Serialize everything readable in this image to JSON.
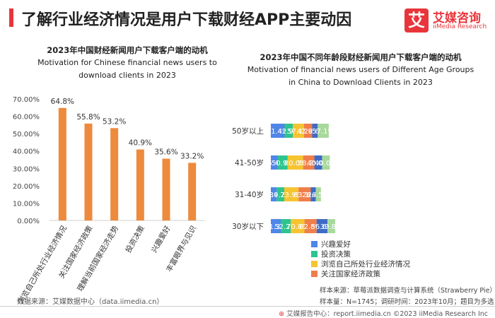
{
  "header": {
    "title": "了解行业经济情况是用户下载财经APP主要动因",
    "logo_mark": "艾",
    "logo_cn": "艾媒咨询",
    "logo_en": "iiMedia Research"
  },
  "colors": {
    "accent": "#e8353b",
    "bar_orange": "#ee8a3c",
    "series": [
      "#4f86e8",
      "#2ec48f",
      "#f5c431",
      "#f07e4a",
      "#3e6bc6",
      "#a8d99c"
    ]
  },
  "chart_data": [
    {
      "type": "bar",
      "title": "2023年中国财经新闻用户下载客户端的动机",
      "subtitle_line1": "Motivation for Chinese financial news users to",
      "subtitle_line2": "download clients in 2023",
      "categories": [
        "浏览自己所处行业经济情况",
        "关注国家经济政策",
        "理解当前国家经济走势",
        "投资决策",
        "兴趣爱好",
        "丰富眼界与见识"
      ],
      "values": [
        64.8,
        55.8,
        53.2,
        40.9,
        35.6,
        33.2
      ],
      "value_labels": [
        "64.8%",
        "55.8%",
        "53.2%",
        "40.9%",
        "35.6%",
        "33.2%"
      ],
      "yticks": [
        "0.00%",
        "10.00%",
        "20.00%",
        "30.00%",
        "40.00%",
        "50.00%",
        "60.00%",
        "70.00%"
      ],
      "ylim": [
        0,
        70
      ],
      "xlabel": "",
      "ylabel": ""
    },
    {
      "type": "bar",
      "orientation": "horizontal-stacked",
      "title": "2023年中国不同年龄段财经新闻用户下载客户端的动机",
      "subtitle_line1": "Motivation of financial news users of Different Age Groups",
      "subtitle_line2": "in China to Download Clients in 2023",
      "categories": [
        "50岁以上",
        "41-50岁",
        "31-40岁",
        "30岁以下"
      ],
      "series": [
        {
          "name": "兴趣爱好",
          "values": [
            71.4,
            36.4,
            30.4,
            51.3
          ],
          "labels": [
            "71.4%",
            "36.4%",
            "30.4%",
            "51.3%"
          ]
        },
        {
          "name": "投资决策",
          "values": [
            42.9,
            50.9,
            39.2,
            52.2
          ],
          "labels": [
            "42.9%",
            "50.9%",
            "39.2%",
            "52.2%"
          ]
        },
        {
          "name": "浏览自己所处行业经济情况",
          "values": [
            57.1,
            80.0,
            73.9,
            70.8
          ],
          "labels": [
            "57.1%",
            "80.0%",
            "73.9%",
            "70.8%"
          ]
        },
        {
          "name": "关注国家经济政策",
          "values": [
            42.9,
            58.2,
            63.1,
            62.8
          ],
          "labels": [
            "42.9%",
            "58.2%",
            "63.1%",
            "62.8%"
          ]
        },
        {
          "name": "",
          "values": [
            28.6,
            40.0,
            26.4,
            56.6
          ],
          "labels": [
            "28.6%",
            "40.0%",
            "26.4%",
            "56.6%"
          ]
        },
        {
          "name": "",
          "values": [
            57.1,
            40.0,
            26.5,
            39.8
          ],
          "labels": [
            "57.1%",
            "40.0%",
            "26.5%",
            "39.8%"
          ]
        }
      ],
      "legend_position": "bottom-left"
    }
  ],
  "notes": {
    "source_left": "数据来源：艾媒数据中心（data.iimedia.cn）",
    "source": "样本来源：草莓派数据调查与计算系统（Strawberry Pie）",
    "sample": "样本量：N=1745；调研时间：2023年10月；题目为多选"
  },
  "footer": {
    "icon": "⊕",
    "text": "艾媒报告中心：report.iimedia.cn  ©2023  iiMedia Research  Inc"
  }
}
